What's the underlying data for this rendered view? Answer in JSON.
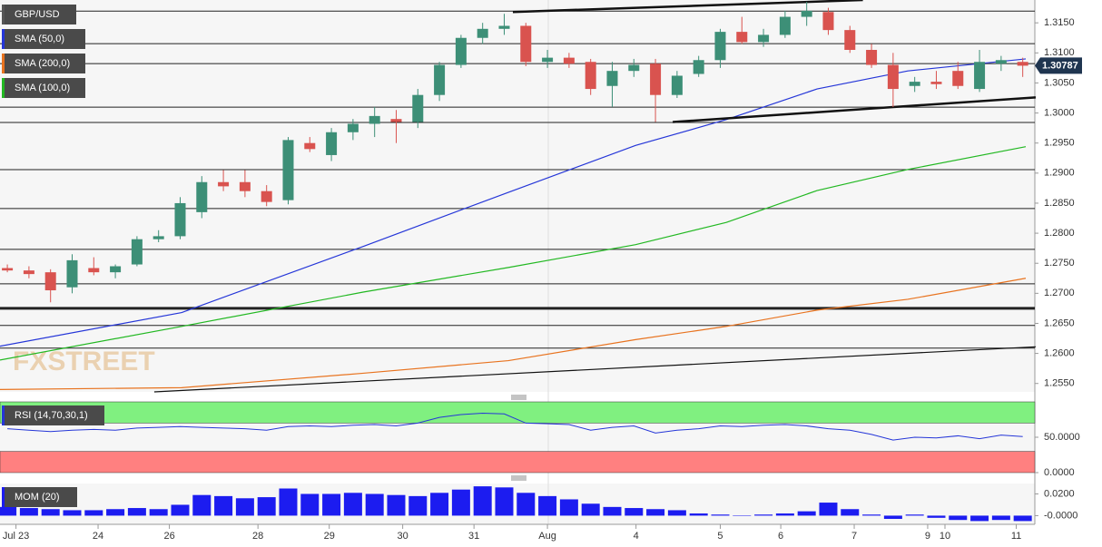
{
  "chart_data": [
    {
      "type": "candlestick",
      "title": "GBP/USD",
      "watermark": "FXSTREET",
      "xlim": [
        -0.34,
        47.56
      ],
      "xticks": [
        {
          "value": 0.4,
          "label": "Jul 23"
        },
        {
          "value": 4.2,
          "label": "24"
        },
        {
          "value": 7.5,
          "label": "26"
        },
        {
          "value": 11.6,
          "label": "28"
        },
        {
          "value": 14.9,
          "label": "29"
        },
        {
          "value": 18.3,
          "label": "30"
        },
        {
          "value": 21.6,
          "label": "31"
        },
        {
          "value": 25,
          "label": "Aug"
        },
        {
          "value": 29.1,
          "label": "4"
        },
        {
          "value": 33,
          "label": "5"
        },
        {
          "value": 35.8,
          "label": "6"
        },
        {
          "value": 39.2,
          "label": "7"
        },
        {
          "value": 42.6,
          "label": "9"
        },
        {
          "value": 43.4,
          "label": "10"
        },
        {
          "value": 46.7,
          "label": "11"
        }
      ],
      "ylim": [
        1.2536,
        1.3188
      ],
      "yticks": [
        {
          "value": 1.315,
          "label": "1.3150"
        },
        {
          "value": 1.31,
          "label": "1.3100"
        },
        {
          "value": 1.305,
          "label": "1.3050"
        },
        {
          "value": 1.3,
          "label": "1.3000"
        },
        {
          "value": 1.295,
          "label": "1.2950"
        },
        {
          "value": 1.29,
          "label": "1.2900"
        },
        {
          "value": 1.285,
          "label": "1.2850"
        },
        {
          "value": 1.28,
          "label": "1.2800"
        },
        {
          "value": 1.275,
          "label": "1.2750"
        },
        {
          "value": 1.27,
          "label": "1.2700"
        },
        {
          "value": 1.265,
          "label": "1.2650"
        },
        {
          "value": 1.26,
          "label": "1.2600"
        },
        {
          "value": 1.255,
          "label": "1.2550"
        }
      ],
      "up_color": "#3d8f77",
      "down_color": "#d9534f",
      "open": [
        1.2742,
        1.2738,
        1.2735,
        1.271,
        1.2742,
        1.2735,
        1.2748,
        1.279,
        1.2795,
        1.2835,
        1.2885,
        1.2885,
        1.287,
        1.2855,
        1.295,
        1.293,
        1.2968,
        1.2982,
        1.299,
        1.2985,
        1.303,
        1.308,
        1.3125,
        1.314,
        1.3145,
        1.3085,
        1.3092,
        1.3085,
        1.3045,
        1.307,
        1.3082,
        1.303,
        1.3065,
        1.3088,
        1.3135,
        1.3118,
        1.313,
        1.316,
        1.3168,
        1.3138,
        1.3105,
        1.308,
        1.3045,
        1.3052,
        1.307,
        1.304,
        1.3082,
        1.3085
      ],
      "high": [
        1.2748,
        1.2745,
        1.274,
        1.2765,
        1.276,
        1.2748,
        1.2795,
        1.2805,
        1.286,
        1.2895,
        1.2905,
        1.2905,
        1.288,
        1.296,
        1.296,
        1.2975,
        1.299,
        1.301,
        1.3005,
        1.304,
        1.3085,
        1.313,
        1.315,
        1.3165,
        1.315,
        1.3105,
        1.31,
        1.309,
        1.3085,
        1.309,
        1.309,
        1.307,
        1.3095,
        1.314,
        1.316,
        1.314,
        1.317,
        1.3185,
        1.3175,
        1.3145,
        1.3115,
        1.31,
        1.306,
        1.307,
        1.3085,
        1.3105,
        1.3095,
        1.3092
      ],
      "low": [
        1.2735,
        1.2725,
        1.2685,
        1.27,
        1.273,
        1.2725,
        1.2745,
        1.2785,
        1.279,
        1.2825,
        1.287,
        1.286,
        1.2845,
        1.2848,
        1.2935,
        1.292,
        1.2955,
        1.296,
        1.295,
        1.2975,
        1.302,
        1.3075,
        1.3115,
        1.313,
        1.3078,
        1.3075,
        1.3075,
        1.303,
        1.301,
        1.306,
        1.2985,
        1.3025,
        1.306,
        1.3075,
        1.3115,
        1.311,
        1.3125,
        1.3145,
        1.313,
        1.31,
        1.3075,
        1.301,
        1.3035,
        1.304,
        1.304,
        1.3035,
        1.307,
        1.306
      ],
      "close": [
        1.2738,
        1.2732,
        1.2705,
        1.2755,
        1.2735,
        1.2745,
        1.279,
        1.2795,
        1.285,
        1.2885,
        1.2878,
        1.287,
        1.2852,
        1.2955,
        1.294,
        1.2968,
        1.2982,
        1.2995,
        1.2985,
        1.303,
        1.308,
        1.3125,
        1.314,
        1.3145,
        1.3085,
        1.3092,
        1.3082,
        1.304,
        1.307,
        1.308,
        1.303,
        1.3062,
        1.3088,
        1.3135,
        1.3118,
        1.313,
        1.316,
        1.317,
        1.3138,
        1.3105,
        1.308,
        1.304,
        1.3052,
        1.3048,
        1.3045,
        1.3085,
        1.3088,
        1.30787
      ],
      "last_price": 1.30787,
      "levels": [
        1.31696,
        1.31153,
        1.30822,
        1.30098,
        1.29842,
        1.29058,
        1.2841,
        1.27731,
        1.27158,
        1.26751,
        1.26465,
        1.26088
      ],
      "trendlines": [
        {
          "x": [
            23.4,
            39.6
          ],
          "y": [
            1.3168,
            1.3188
          ]
        },
        {
          "x": [
            30.8,
            47.6
          ],
          "y": [
            1.2985,
            1.3026
          ]
        },
        {
          "x": [
            6.8,
            47.6
          ],
          "y": [
            1.2536,
            1.2611
          ]
        }
      ],
      "series": [
        {
          "name": "SMA (50,0)",
          "color": "#2536d8",
          "x": [
            -0.34,
            8.07,
            16.47,
            23.19,
            29.08,
            33.28,
            37.48,
            41.68,
            47.14
          ],
          "values": [
            1.2612,
            1.2668,
            1.2778,
            1.2868,
            1.2946,
            1.2989,
            1.304,
            1.307,
            1.309
          ]
        },
        {
          "name": "SMA (200,0)",
          "color": "#e8731f",
          "x": [
            -0.34,
            8.07,
            16.47,
            23.19,
            29.08,
            33.28,
            37.48,
            41.68,
            47.14
          ],
          "values": [
            1.254,
            1.2543,
            1.2567,
            1.2588,
            1.2623,
            1.2645,
            1.2672,
            1.269,
            1.2725
          ]
        },
        {
          "name": "SMA (100,0)",
          "color": "#22b822",
          "x": [
            -0.34,
            8.07,
            16.47,
            23.19,
            29.08,
            33.28,
            37.48,
            41.68,
            47.14
          ],
          "values": [
            1.2589,
            1.2645,
            1.2702,
            1.2743,
            1.2781,
            1.2818,
            1.2871,
            1.2906,
            1.2944
          ]
        }
      ]
    },
    {
      "type": "line",
      "title": "RSI (14,70,30,1)",
      "color": "#2536d8",
      "ylim": [
        0,
        100
      ],
      "yticks": [
        {
          "value": 50,
          "label": "50.0000"
        },
        {
          "value": 0,
          "label": "0.0000"
        }
      ],
      "bands": [
        {
          "from": 70,
          "to": 100,
          "color": "#80f080"
        },
        {
          "from": 0,
          "to": 30,
          "color": "#ff8080"
        }
      ],
      "values": [
        62,
        60,
        58,
        60,
        61,
        60,
        63,
        64,
        65,
        64,
        63,
        62,
        60,
        65,
        66,
        65,
        67,
        68,
        66,
        70,
        78,
        82,
        84,
        83,
        70,
        69,
        68,
        60,
        64,
        66,
        56,
        60,
        62,
        66,
        65,
        67,
        68,
        66,
        62,
        60,
        54,
        46,
        50,
        49,
        52,
        48,
        53,
        51
      ]
    },
    {
      "type": "bar",
      "title": "MOM (20)",
      "color": "#1c1cf0",
      "ylim": [
        -0.008,
        0.0296
      ],
      "yticks": [
        {
          "value": 0.02,
          "label": "0.0200"
        },
        {
          "value": 0,
          "label": "-0.0000"
        }
      ],
      "values": [
        0.008,
        0.007,
        0.006,
        0.005,
        0.005,
        0.006,
        0.007,
        0.006,
        0.01,
        0.019,
        0.018,
        0.016,
        0.017,
        0.025,
        0.02,
        0.02,
        0.021,
        0.02,
        0.019,
        0.018,
        0.021,
        0.024,
        0.027,
        0.026,
        0.021,
        0.018,
        0.015,
        0.011,
        0.008,
        0.007,
        0.006,
        0.005,
        0.002,
        0.001,
        0.0,
        0.001,
        0.002,
        0.004,
        0.012,
        0.006,
        0.001,
        -0.003,
        0.001,
        -0.002,
        -0.004,
        -0.005,
        -0.004,
        -0.005
      ]
    }
  ]
}
